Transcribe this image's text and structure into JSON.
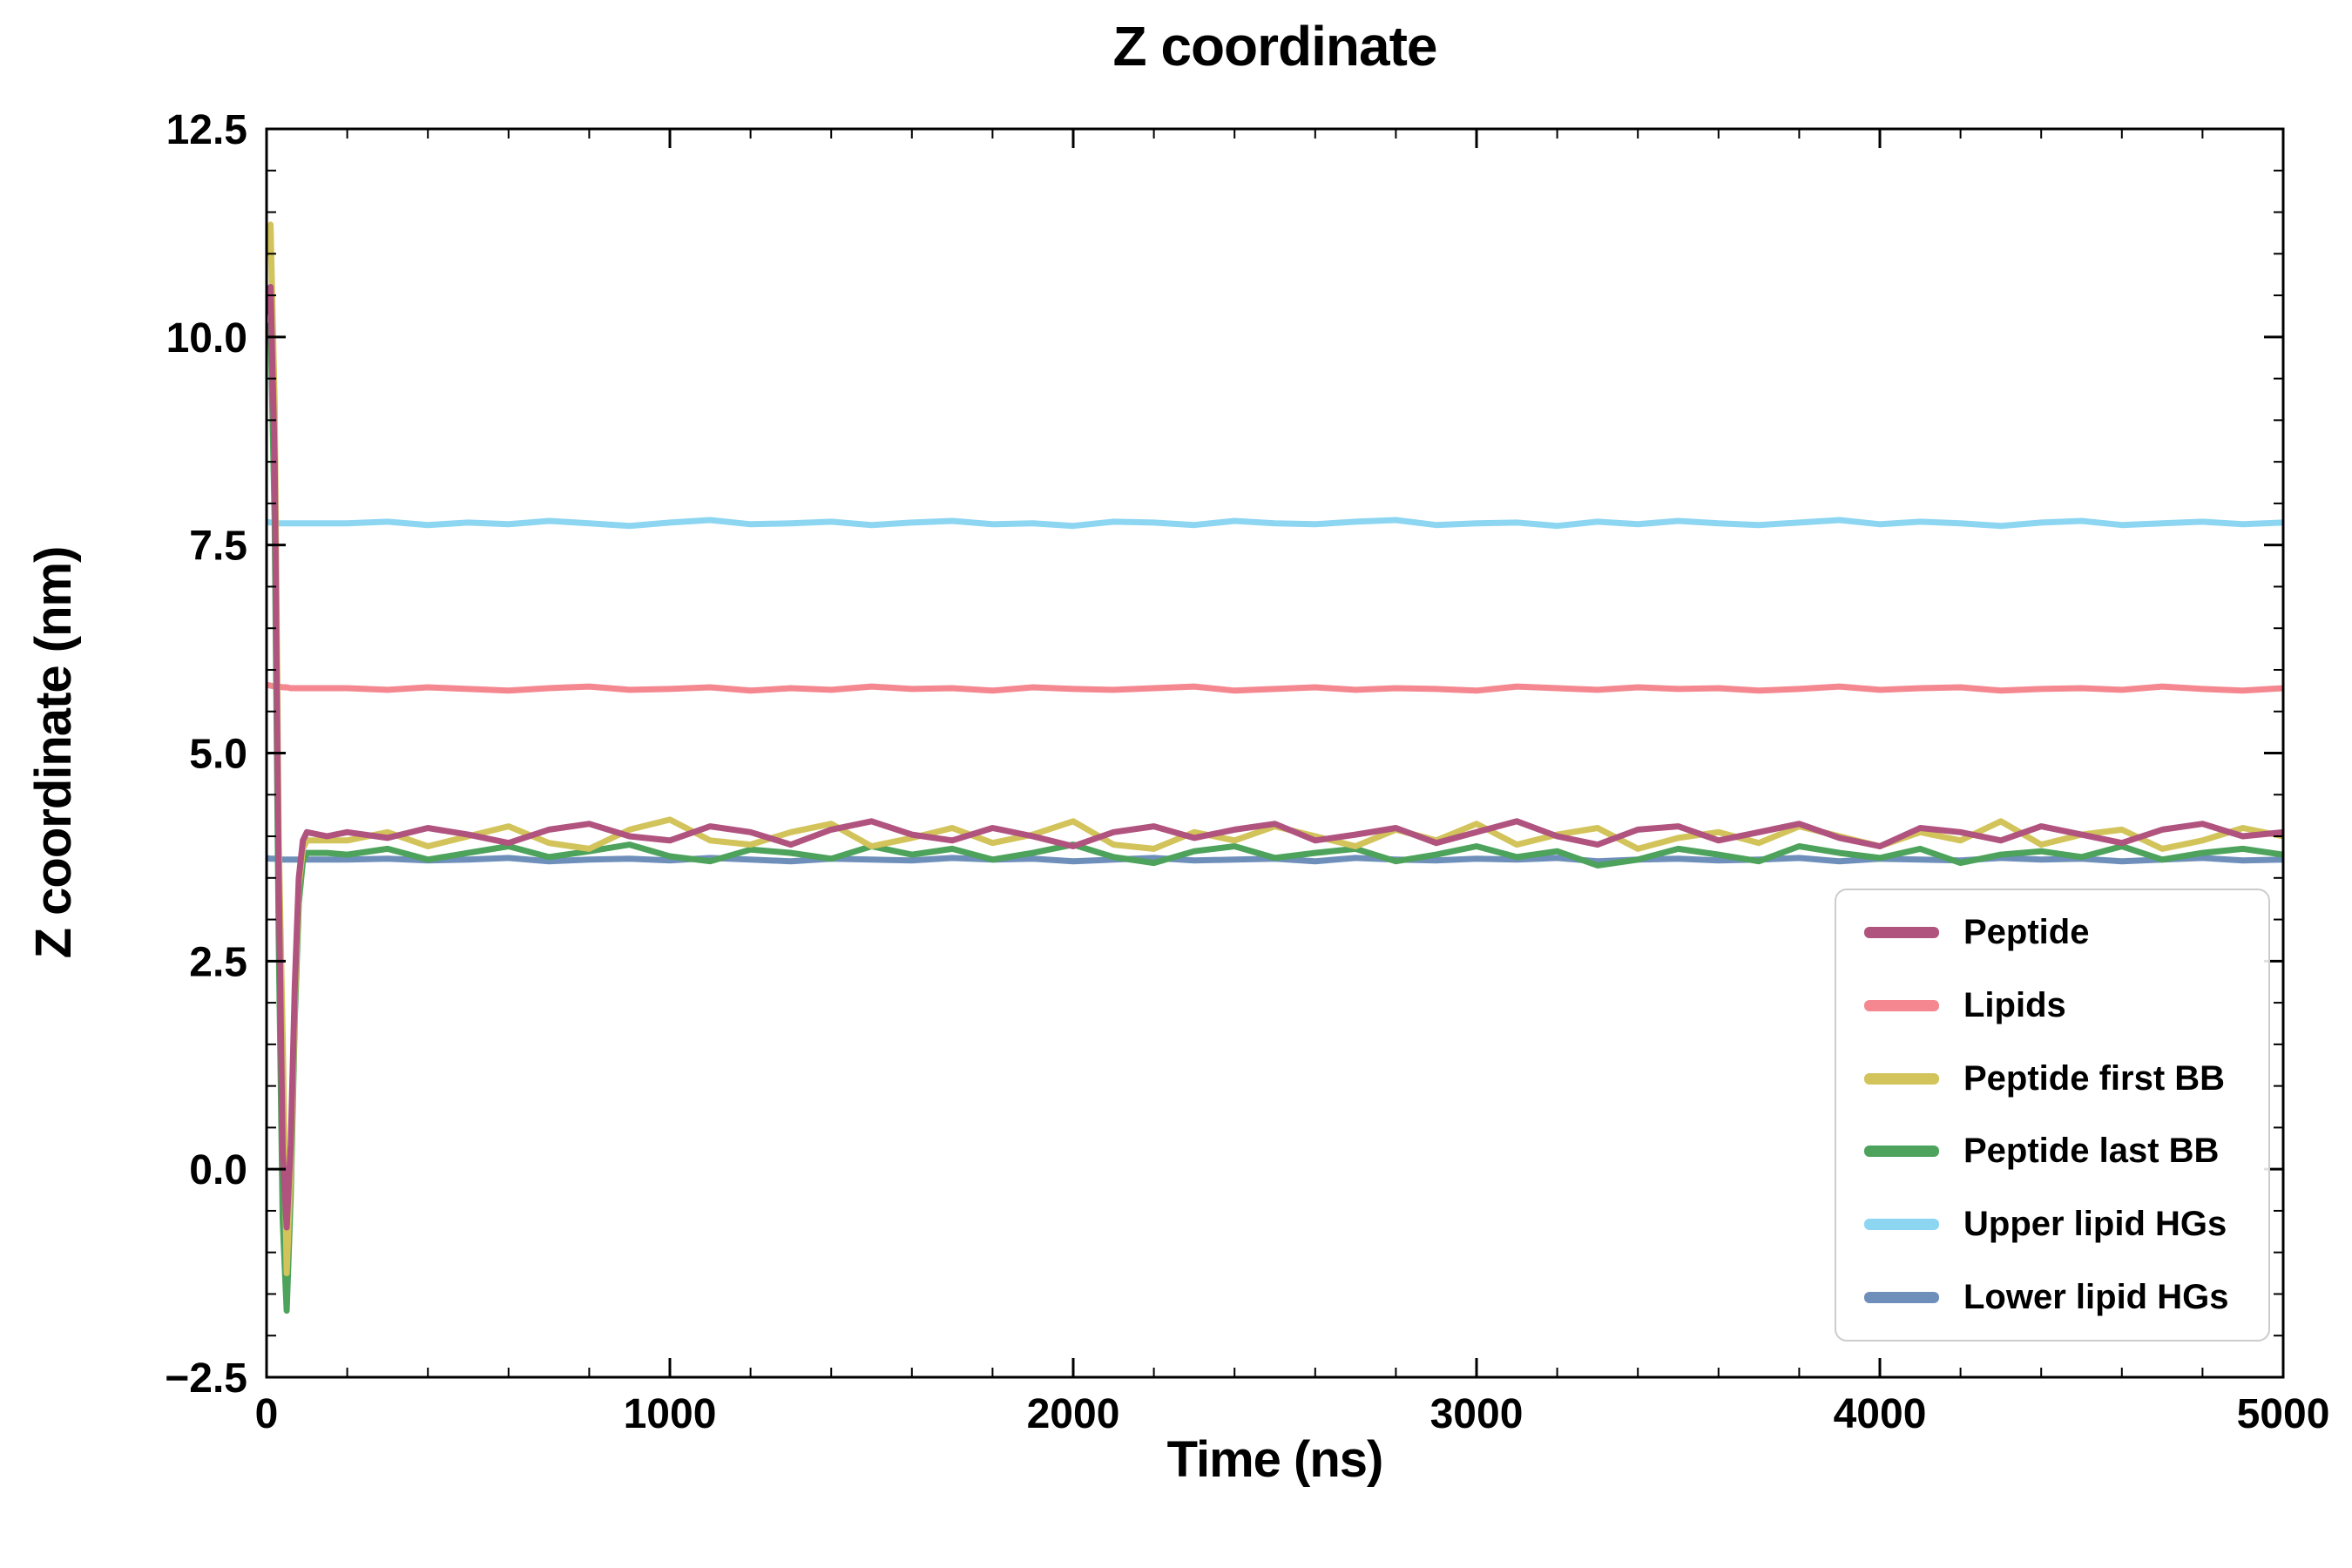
{
  "chart_data": {
    "type": "line",
    "title": "Z coordinate",
    "xlabel": "Time (ns)",
    "ylabel": "Z coordinate (nm)",
    "xlim": [
      0,
      5000
    ],
    "ylim": [
      -2.5,
      12.5
    ],
    "xticks": [
      0,
      1000,
      2000,
      3000,
      4000,
      5000
    ],
    "xtick_labels": [
      "0",
      "1000",
      "2000",
      "3000",
      "4000",
      "5000"
    ],
    "yticks": [
      -2.5,
      0.0,
      2.5,
      5.0,
      7.5,
      10.0,
      12.5
    ],
    "ytick_labels": [
      "−2.5",
      "0.0",
      "2.5",
      "5.0",
      "7.5",
      "10.0",
      "12.5"
    ],
    "x_minor_step": 200,
    "y_minor_step": 0.5,
    "grid": false,
    "legend_position": "lower right",
    "draw_order": [
      4,
      5,
      1,
      3,
      2,
      0
    ],
    "x": [
      0,
      10,
      20,
      30,
      40,
      50,
      60,
      70,
      80,
      90,
      100,
      150,
      200,
      300,
      400,
      500,
      600,
      700,
      800,
      900,
      1000,
      1100,
      1200,
      1300,
      1400,
      1500,
      1600,
      1700,
      1800,
      1900,
      2000,
      2100,
      2200,
      2300,
      2400,
      2500,
      2600,
      2700,
      2800,
      2900,
      3000,
      3100,
      3200,
      3300,
      3400,
      3500,
      3600,
      3700,
      3800,
      3900,
      4000,
      4100,
      4200,
      4300,
      4400,
      4500,
      4600,
      4700,
      4800,
      4900,
      5000
    ],
    "series": [
      {
        "name": "Peptide",
        "color": "#b0537e",
        "values": [
          10.3,
          10.6,
          8.5,
          3.5,
          0.2,
          -0.7,
          0.3,
          2.2,
          3.5,
          3.95,
          4.05,
          4.0,
          4.05,
          3.98,
          4.1,
          4.02,
          3.92,
          4.08,
          4.15,
          4.0,
          3.95,
          4.12,
          4.05,
          3.9,
          4.08,
          4.18,
          4.02,
          3.95,
          4.1,
          4.0,
          3.88,
          4.05,
          4.12,
          3.98,
          4.08,
          4.15,
          3.95,
          4.02,
          4.1,
          3.92,
          4.05,
          4.18,
          4.0,
          3.9,
          4.08,
          4.12,
          3.95,
          4.05,
          4.15,
          3.98,
          3.88,
          4.1,
          4.05,
          3.95,
          4.12,
          4.02,
          3.92,
          4.08,
          4.15,
          4.0,
          4.05
        ]
      },
      {
        "name": "Lipids",
        "color": "#f4878f",
        "values": [
          5.82,
          5.81,
          5.8,
          5.8,
          5.79,
          5.79,
          5.78,
          5.78,
          5.78,
          5.78,
          5.78,
          5.78,
          5.78,
          5.76,
          5.79,
          5.77,
          5.75,
          5.78,
          5.8,
          5.76,
          5.77,
          5.79,
          5.75,
          5.78,
          5.76,
          5.8,
          5.77,
          5.78,
          5.75,
          5.79,
          5.77,
          5.76,
          5.78,
          5.8,
          5.75,
          5.77,
          5.79,
          5.76,
          5.78,
          5.77,
          5.75,
          5.8,
          5.78,
          5.76,
          5.79,
          5.77,
          5.78,
          5.75,
          5.77,
          5.8,
          5.76,
          5.78,
          5.79,
          5.75,
          5.77,
          5.78,
          5.76,
          5.8,
          5.77,
          5.75,
          5.78
        ]
      },
      {
        "name": "Peptide first BB",
        "color": "#d2c35a",
        "values": [
          11.0,
          11.35,
          9.2,
          4.0,
          1.6,
          -1.25,
          0.0,
          2.0,
          3.4,
          3.85,
          3.95,
          3.95,
          3.95,
          4.05,
          3.88,
          4.0,
          4.12,
          3.92,
          3.85,
          4.08,
          4.2,
          3.95,
          3.9,
          4.05,
          4.15,
          3.88,
          3.98,
          4.1,
          3.92,
          4.02,
          4.18,
          3.9,
          3.85,
          4.05,
          3.95,
          4.12,
          4.0,
          3.88,
          4.08,
          3.95,
          4.15,
          3.9,
          4.02,
          4.1,
          3.85,
          3.98,
          4.05,
          3.92,
          4.12,
          4.0,
          3.88,
          4.05,
          3.95,
          4.18,
          3.9,
          4.02,
          4.08,
          3.85,
          3.95,
          4.1,
          4.0
        ]
      },
      {
        "name": "Peptide last BB",
        "color": "#4da25c",
        "values": [
          10.0,
          10.15,
          7.8,
          2.8,
          -0.6,
          -1.7,
          -0.3,
          1.8,
          3.2,
          3.7,
          3.8,
          3.8,
          3.78,
          3.85,
          3.72,
          3.8,
          3.88,
          3.75,
          3.82,
          3.9,
          3.76,
          3.7,
          3.84,
          3.8,
          3.73,
          3.88,
          3.78,
          3.85,
          3.72,
          3.8,
          3.9,
          3.75,
          3.68,
          3.82,
          3.88,
          3.74,
          3.8,
          3.85,
          3.7,
          3.78,
          3.88,
          3.75,
          3.82,
          3.65,
          3.72,
          3.85,
          3.78,
          3.7,
          3.88,
          3.8,
          3.74,
          3.85,
          3.68,
          3.78,
          3.82,
          3.75,
          3.88,
          3.72,
          3.8,
          3.85,
          3.78
        ]
      },
      {
        "name": "Upper lipid HGs",
        "color": "#8dd6f2",
        "values": [
          7.78,
          7.77,
          7.77,
          7.76,
          7.76,
          7.76,
          7.76,
          7.76,
          7.76,
          7.76,
          7.76,
          7.76,
          7.76,
          7.78,
          7.74,
          7.77,
          7.75,
          7.79,
          7.76,
          7.73,
          7.77,
          7.8,
          7.75,
          7.76,
          7.78,
          7.74,
          7.77,
          7.79,
          7.75,
          7.76,
          7.73,
          7.78,
          7.77,
          7.74,
          7.79,
          7.76,
          7.75,
          7.78,
          7.8,
          7.74,
          7.76,
          7.77,
          7.73,
          7.78,
          7.75,
          7.79,
          7.76,
          7.74,
          7.77,
          7.8,
          7.75,
          7.78,
          7.76,
          7.73,
          7.77,
          7.79,
          7.74,
          7.76,
          7.78,
          7.75,
          7.77
        ]
      },
      {
        "name": "Lower lipid HGs",
        "color": "#6f8fbb",
        "values": [
          3.74,
          3.73,
          3.73,
          3.72,
          3.72,
          3.72,
          3.72,
          3.72,
          3.72,
          3.72,
          3.72,
          3.72,
          3.72,
          3.73,
          3.71,
          3.72,
          3.74,
          3.7,
          3.72,
          3.73,
          3.71,
          3.74,
          3.72,
          3.7,
          3.73,
          3.72,
          3.71,
          3.74,
          3.72,
          3.73,
          3.7,
          3.72,
          3.74,
          3.71,
          3.72,
          3.73,
          3.7,
          3.74,
          3.72,
          3.71,
          3.73,
          3.72,
          3.74,
          3.7,
          3.72,
          3.73,
          3.71,
          3.72,
          3.74,
          3.7,
          3.73,
          3.72,
          3.71,
          3.74,
          3.72,
          3.73,
          3.7,
          3.72,
          3.74,
          3.71,
          3.72
        ]
      }
    ]
  }
}
